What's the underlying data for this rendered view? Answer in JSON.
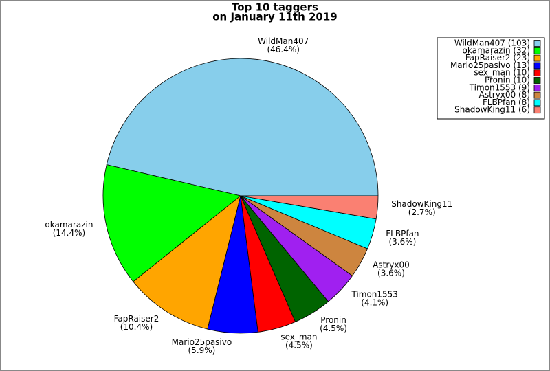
{
  "chart_data": {
    "type": "pie",
    "title": "Top 10 taggers",
    "subtitle": "on January 11th 2019",
    "categories": [
      "WildMan407",
      "okamarazin",
      "FapRaiser2",
      "Mario25pasivo",
      "sex_man",
      "Pronin",
      "Timon1553",
      "Astryx00",
      "FLBPfan",
      "ShadowKing11"
    ],
    "values": [
      46.4,
      14.4,
      10.4,
      5.9,
      4.5,
      4.5,
      4.1,
      3.6,
      3.6,
      2.7
    ],
    "value_labels": [
      "(46.4%)",
      "(14.4%)",
      "(10.4%)",
      "(5.9%)",
      "(4.5%)",
      "(4.5%)",
      "(4.1%)",
      "(3.6%)",
      "(3.6%)",
      "(2.7%)"
    ],
    "colors": [
      "#87ceeb",
      "#00ff00",
      "#ffa500",
      "#0000ff",
      "#ff0000",
      "#006400",
      "#a020f0",
      "#cd853f",
      "#00ffff",
      "#fa8072"
    ],
    "legend_labels": [
      "WildMan407 (103)",
      "okamarazin (32)",
      "FapRaiser2 (23)",
      "Mario25pasivo (13)",
      "sex_man (10)",
      "Pronin (10)",
      "Timon1553 (9)",
      "Astryx00 (8)",
      "FLBPfan (8)",
      "ShadowKing11 (6)"
    ],
    "legend": "upper right"
  }
}
